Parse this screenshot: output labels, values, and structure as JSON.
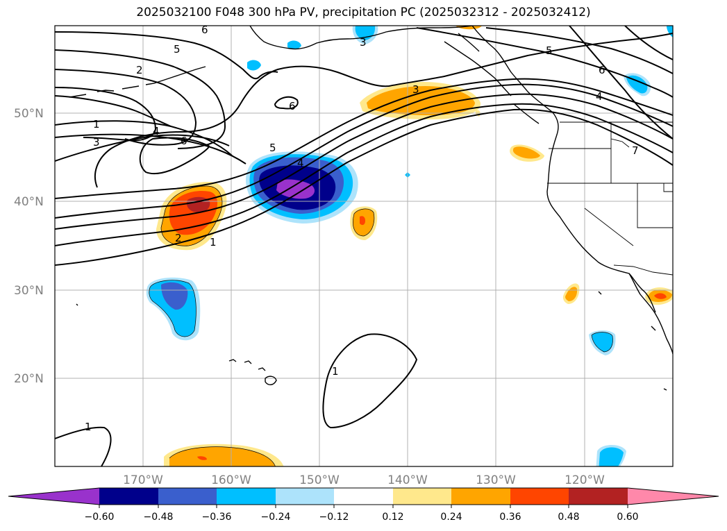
{
  "title": "2025032100 F048 300 hPa PV, precipitation PC (2025032312 - 2025032412)",
  "map": {
    "lat_labels": [
      "50°N",
      "40°N",
      "30°N",
      "20°N"
    ],
    "lon_labels": [
      "170°W",
      "160°W",
      "150°W",
      "140°W",
      "130°W",
      "120°W"
    ],
    "grid": true
  },
  "colorbar": {
    "ticks": [
      "−0.60",
      "−0.48",
      "−0.36",
      "−0.24",
      "−0.12",
      "0.12",
      "0.24",
      "0.36",
      "0.48",
      "0.60"
    ],
    "colors": [
      "#9932CC",
      "#00008B",
      "#3A5FCD",
      "#00BFFF",
      "#ADE3FB",
      "#FFFFFF",
      "#FFE88C",
      "#FFA500",
      "#FF4500",
      "#B22222",
      "#FF88AA"
    ]
  },
  "contour_labels": [
    "6",
    "5",
    "2",
    "1",
    "3",
    "4",
    "6",
    "6",
    "5",
    "4",
    "2",
    "1",
    "3",
    "3",
    "5",
    "6",
    "4",
    "7",
    "1",
    "1"
  ]
}
